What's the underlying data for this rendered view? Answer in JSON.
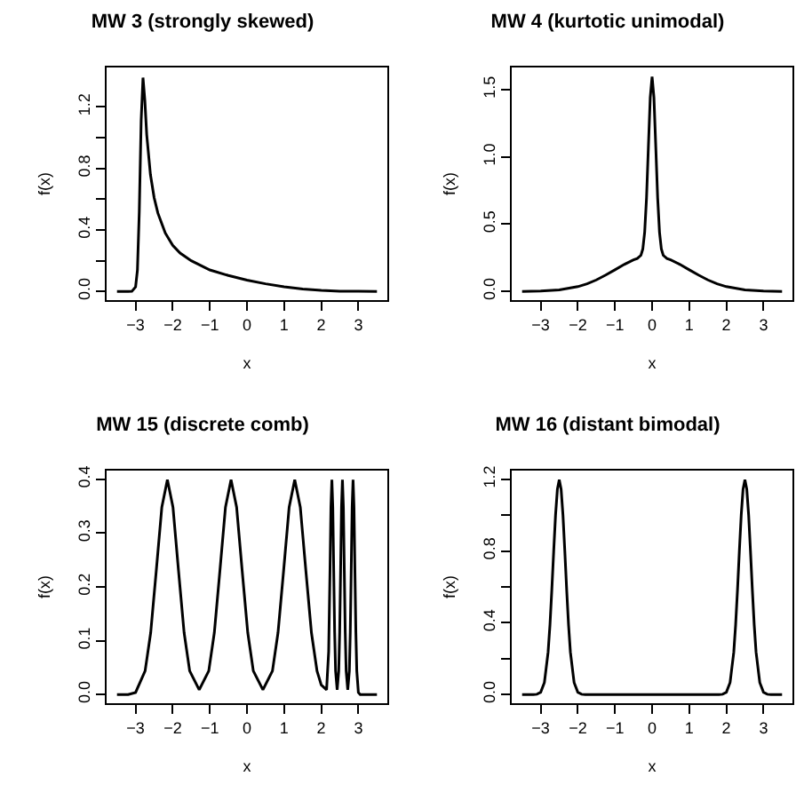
{
  "chart_data": [
    {
      "type": "line",
      "title": "MW 3 (strongly skewed)",
      "xlabel": "x",
      "ylabel": "f(x)",
      "xlim": [
        -3.78,
        3.78
      ],
      "ylim": [
        -0.056,
        1.456
      ],
      "xticks": [
        {
          "value": -3,
          "label": "−3"
        },
        {
          "value": -2,
          "label": "−2"
        },
        {
          "value": -1,
          "label": "−1"
        },
        0,
        1,
        2,
        3
      ],
      "yticks": [
        {
          "value": 0,
          "label": "0.0"
        },
        {
          "value": 0.2,
          "label": null
        },
        {
          "value": 0.4,
          "label": "0.4"
        },
        {
          "value": 0.6,
          "label": null
        },
        {
          "value": 0.8,
          "label": "0.8"
        },
        {
          "value": 1.0,
          "label": null
        },
        {
          "value": 1.2,
          "label": "1.2"
        }
      ],
      "series": [
        {
          "color": "#000000",
          "x": [
            -3.5,
            -3.2,
            -3.1,
            -3.0,
            -2.95,
            -2.9,
            -2.85,
            -2.8,
            -2.75,
            -2.7,
            -2.6,
            -2.5,
            -2.4,
            -2.2,
            -2.0,
            -1.8,
            -1.5,
            -1.0,
            -0.5,
            0,
            0.5,
            1.0,
            1.5,
            2.0,
            2.5,
            3.0,
            3.5
          ],
          "values": [
            0,
            0,
            0.001,
            0.03,
            0.14,
            0.52,
            1.11,
            1.39,
            1.24,
            1.02,
            0.76,
            0.61,
            0.51,
            0.38,
            0.3,
            0.25,
            0.2,
            0.14,
            0.104,
            0.074,
            0.05,
            0.031,
            0.016,
            0.007,
            0.002,
            0.001,
            0
          ]
        }
      ]
    },
    {
      "type": "line",
      "title": "MW 4 (kurtotic unimodal)",
      "xlabel": "x",
      "ylabel": "f(x)",
      "xlim": [
        -3.78,
        3.78
      ],
      "ylim": [
        -0.064,
        1.664
      ],
      "xticks": [
        {
          "value": -3,
          "label": "−3"
        },
        {
          "value": -2,
          "label": "−2"
        },
        {
          "value": -1,
          "label": "−1"
        },
        0,
        1,
        2,
        3
      ],
      "yticks": [
        {
          "value": 0,
          "label": "0.0"
        },
        {
          "value": 0.5,
          "label": "0.5"
        },
        {
          "value": 1.0,
          "label": "1.0"
        },
        {
          "value": 1.5,
          "label": "1.5"
        }
      ],
      "series": [
        {
          "color": "#000000",
          "x": [
            -3.5,
            -3,
            -2.5,
            -2,
            -1.75,
            -1.5,
            -1.25,
            -1,
            -0.75,
            -0.5,
            -0.4,
            -0.3,
            -0.25,
            -0.2,
            -0.15,
            -0.1,
            -0.05,
            0,
            0.05,
            0.1,
            0.15,
            0.2,
            0.25,
            0.3,
            0.4,
            0.5,
            0.75,
            1,
            1.25,
            1.5,
            1.75,
            2,
            2.5,
            3,
            3.5
          ],
          "values": [
            0.001,
            0.003,
            0.012,
            0.036,
            0.057,
            0.086,
            0.122,
            0.161,
            0.201,
            0.235,
            0.245,
            0.269,
            0.315,
            0.44,
            0.695,
            1.07,
            1.44,
            1.596,
            1.44,
            1.07,
            0.695,
            0.44,
            0.315,
            0.269,
            0.245,
            0.235,
            0.201,
            0.161,
            0.122,
            0.086,
            0.057,
            0.036,
            0.012,
            0.003,
            0.001
          ]
        }
      ]
    },
    {
      "type": "line",
      "title": "MW 15 (discrete comb)",
      "xlabel": "x",
      "ylabel": "f(x)",
      "xlim": [
        -3.78,
        3.78
      ],
      "ylim": [
        -0.016,
        0.416
      ],
      "xticks": [
        {
          "value": -3,
          "label": "−3"
        },
        {
          "value": -2,
          "label": "−2"
        },
        {
          "value": -1,
          "label": "−1"
        },
        0,
        1,
        2,
        3
      ],
      "yticks": [
        {
          "value": 0,
          "label": "0.0"
        },
        {
          "value": 0.1,
          "label": "0.1"
        },
        {
          "value": 0.2,
          "label": "0.2"
        },
        {
          "value": 0.3,
          "label": "0.3"
        },
        {
          "value": 0.4,
          "label": "0.4"
        }
      ],
      "series": [
        {
          "color": "#000000",
          "x": [
            -3.5,
            -3.2,
            -3.0,
            -2.743,
            -2.593,
            -2.443,
            -2.293,
            -2.143,
            -1.993,
            -1.843,
            -1.693,
            -1.543,
            -1.286,
            -1.029,
            -0.879,
            -0.729,
            -0.579,
            -0.429,
            -0.279,
            -0.129,
            0.021,
            0.171,
            0.429,
            0.686,
            0.836,
            0.986,
            1.136,
            1.286,
            1.436,
            1.586,
            1.736,
            1.886,
            2.0,
            2.143,
            2.2,
            2.236,
            2.261,
            2.286,
            2.311,
            2.336,
            2.361,
            2.386,
            2.429,
            2.471,
            2.496,
            2.521,
            2.546,
            2.571,
            2.596,
            2.621,
            2.646,
            2.671,
            2.714,
            2.757,
            2.782,
            2.807,
            2.832,
            2.857,
            2.882,
            2.907,
            2.932,
            2.957,
            3.0,
            3.05,
            3.5
          ],
          "values": [
            0,
            0,
            0.004,
            0.044,
            0.115,
            0.23,
            0.348,
            0.399,
            0.348,
            0.23,
            0.115,
            0.044,
            0.009,
            0.044,
            0.115,
            0.23,
            0.348,
            0.399,
            0.348,
            0.23,
            0.115,
            0.044,
            0.009,
            0.044,
            0.115,
            0.23,
            0.348,
            0.399,
            0.348,
            0.23,
            0.115,
            0.044,
            0.018,
            0.009,
            0.08,
            0.23,
            0.348,
            0.399,
            0.348,
            0.23,
            0.116,
            0.044,
            0.009,
            0.044,
            0.116,
            0.23,
            0.348,
            0.399,
            0.348,
            0.23,
            0.116,
            0.044,
            0.009,
            0.044,
            0.116,
            0.23,
            0.348,
            0.399,
            0.348,
            0.23,
            0.116,
            0.044,
            0.004,
            0,
            0
          ]
        }
      ]
    },
    {
      "type": "line",
      "title": "MW 16 (distant bimodal)",
      "xlabel": "x",
      "ylabel": "f(x)",
      "xlim": [
        -3.78,
        3.78
      ],
      "ylim": [
        -0.048,
        1.248
      ],
      "xticks": [
        {
          "value": -3,
          "label": "−3"
        },
        {
          "value": -2,
          "label": "−2"
        },
        {
          "value": -1,
          "label": "−1"
        },
        0,
        1,
        2,
        3
      ],
      "yticks": [
        {
          "value": 0,
          "label": "0.0"
        },
        {
          "value": 0.2,
          "label": null
        },
        {
          "value": 0.4,
          "label": "0.4"
        },
        {
          "value": 0.6,
          "label": null
        },
        {
          "value": 0.8,
          "label": "0.8"
        },
        {
          "value": 1.0,
          "label": null
        },
        {
          "value": 1.2,
          "label": "1.2"
        }
      ],
      "series": [
        {
          "color": "#000000",
          "x": [
            -3.5,
            -3.2,
            -3.1,
            -3.0,
            -2.9,
            -2.8,
            -2.75,
            -2.7,
            -2.65,
            -2.6,
            -2.55,
            -2.5,
            -2.45,
            -2.4,
            -2.35,
            -2.3,
            -2.25,
            -2.2,
            -2.1,
            -2.0,
            -1.9,
            -1.8,
            1.8,
            1.9,
            2.0,
            2.1,
            2.2,
            2.25,
            2.3,
            2.35,
            2.4,
            2.45,
            2.5,
            2.55,
            2.6,
            2.65,
            2.7,
            2.75,
            2.8,
            2.9,
            3.0,
            3.1,
            3.2,
            3.5
          ],
          "values": [
            0,
            0,
            0.002,
            0.013,
            0.067,
            0.237,
            0.389,
            0.583,
            0.798,
            1.0,
            1.144,
            1.197,
            1.144,
            1.0,
            0.798,
            0.583,
            0.389,
            0.237,
            0.067,
            0.013,
            0.002,
            0,
            0,
            0.002,
            0.013,
            0.067,
            0.237,
            0.389,
            0.583,
            0.798,
            1.0,
            1.144,
            1.197,
            1.144,
            1.0,
            0.798,
            0.583,
            0.389,
            0.237,
            0.067,
            0.013,
            0.002,
            0,
            0
          ]
        }
      ]
    }
  ]
}
